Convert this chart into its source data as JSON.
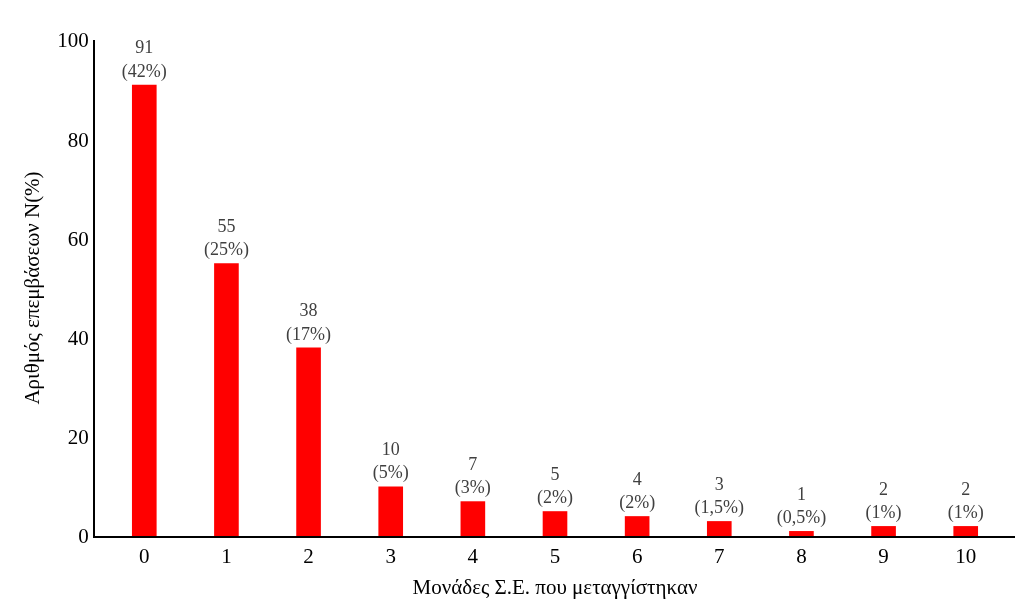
{
  "chart_data": {
    "type": "bar",
    "xlabel": "Μονάδες Σ.Ε. που μεταγγίστηκαν",
    "ylabel": "Αριθμός επεμβάσεων N(%)",
    "categories": [
      "0",
      "1",
      "2",
      "3",
      "4",
      "5",
      "6",
      "7",
      "8",
      "9",
      "10"
    ],
    "values": [
      91,
      55,
      38,
      10,
      7,
      5,
      4,
      3,
      1,
      2,
      2
    ],
    "value_labels": [
      "91\n(42%)",
      "55\n(25%)",
      "38\n(17%)",
      "10\n(5%)",
      "7\n(3%)",
      "5\n(2%)",
      "4\n(2%)",
      "3\n(1,5%)",
      "1\n(0,5%)",
      "2\n(1%)",
      "2\n(1%)"
    ],
    "color": "#ff0000",
    "ylim": [
      0,
      100
    ],
    "yticks": [
      0,
      20,
      40,
      60,
      80,
      100
    ],
    "grid": false
  }
}
